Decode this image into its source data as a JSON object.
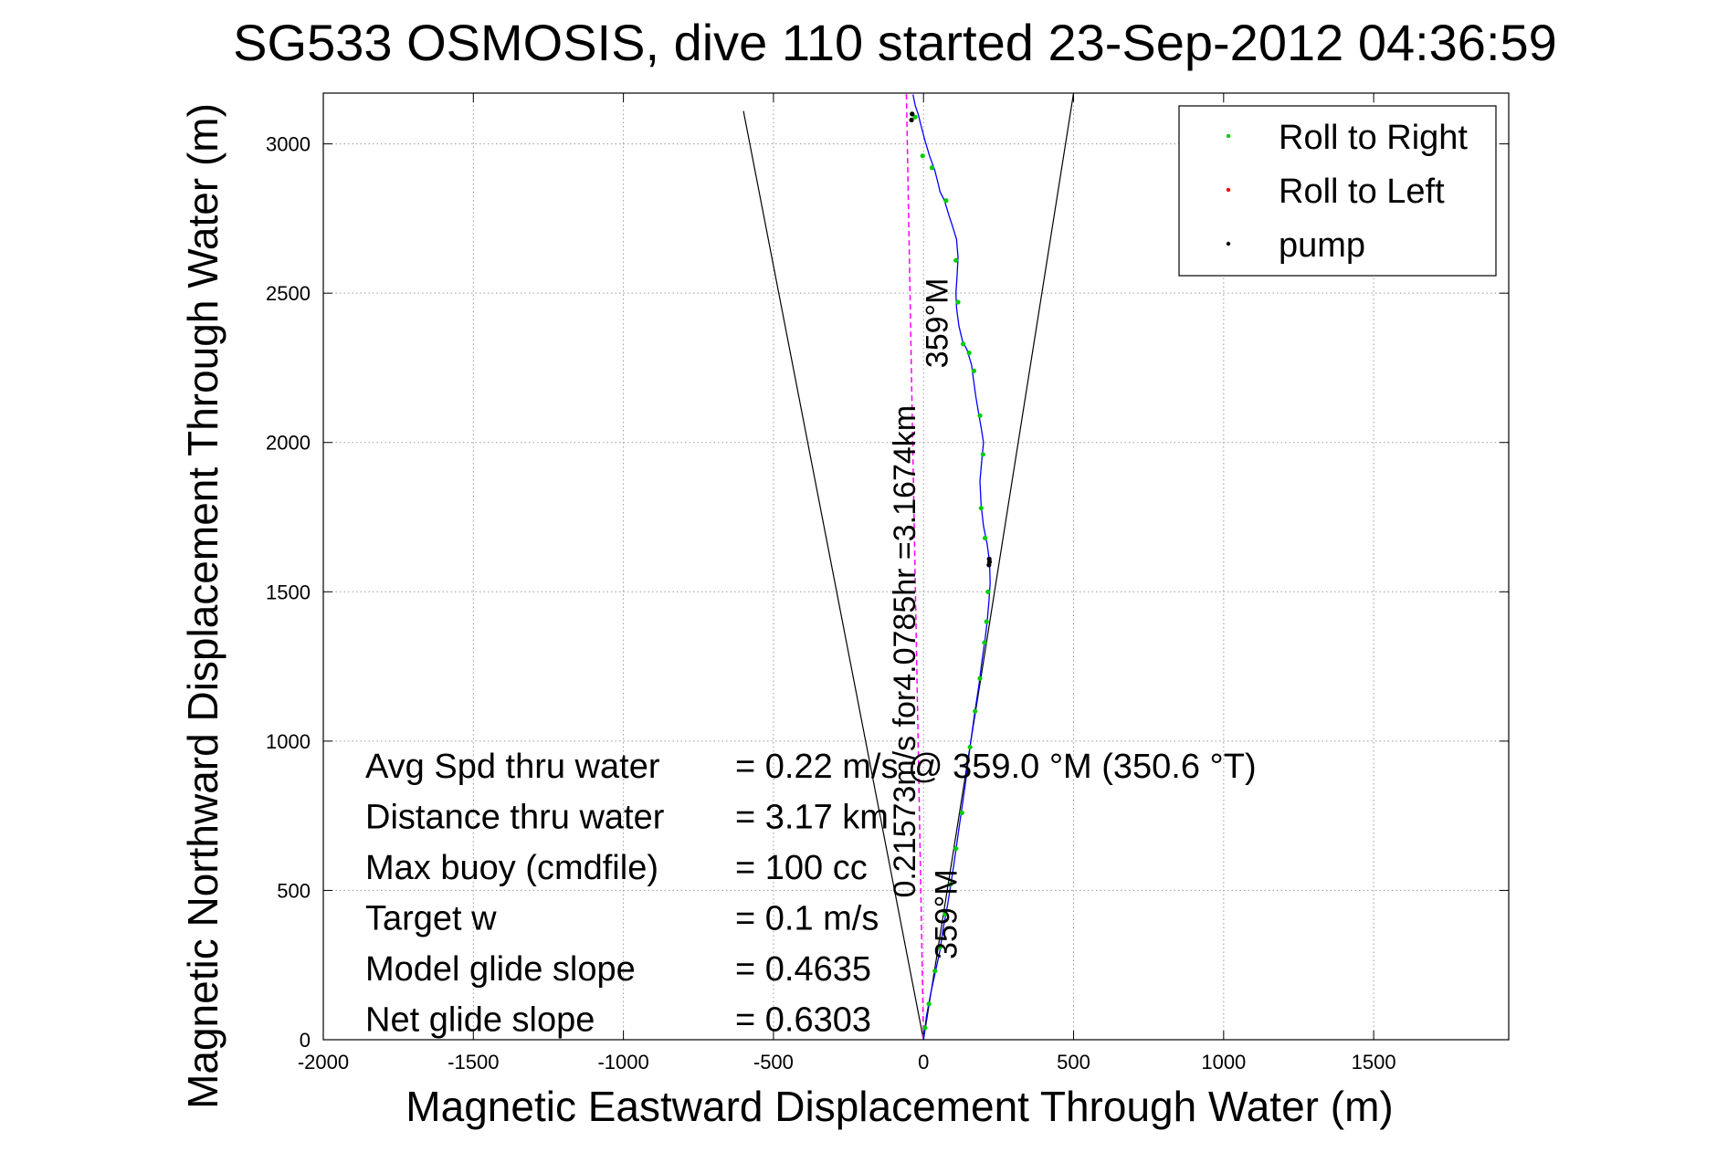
{
  "chart_data": {
    "type": "line",
    "title": "SG533 OSMOSIS, dive 110 started 23-Sep-2012 04:36:59",
    "xlabel": "Magnetic Eastward Displacement Through Water (m)",
    "ylabel": "Magnetic Northward Displacement Through Water (m)",
    "xlim": [
      -2000,
      1950
    ],
    "ylim": [
      0,
      3170
    ],
    "xticks": [
      -2000,
      -1500,
      -1000,
      -500,
      0,
      500,
      1000,
      1500
    ],
    "yticks": [
      0,
      500,
      1000,
      1500,
      2000,
      2500,
      3000
    ],
    "grid": true,
    "legend_position": "top-right",
    "legend": [
      {
        "label": "Roll to Right",
        "color": "#00cc00"
      },
      {
        "label": "Roll to Left",
        "color": "#ff0000"
      },
      {
        "label": "pump",
        "color": "#000000"
      }
    ],
    "track": {
      "name": "track",
      "color": "#0000ff",
      "x": [
        0,
        10,
        25,
        40,
        55,
        65,
        80,
        100,
        120,
        140,
        155,
        170,
        185,
        195,
        205,
        212,
        218,
        222,
        220,
        212,
        200,
        192,
        188,
        195,
        200,
        192,
        185,
        175,
        168,
        160,
        145,
        130,
        118,
        110,
        108,
        112,
        115,
        110,
        98,
        85,
        70,
        55,
        48,
        38,
        20,
        5,
        -8,
        -18,
        -28,
        -35
      ],
      "y": [
        0,
        80,
        160,
        230,
        300,
        370,
        450,
        580,
        720,
        860,
        980,
        1090,
        1190,
        1270,
        1340,
        1400,
        1470,
        1530,
        1600,
        1660,
        1720,
        1790,
        1870,
        1950,
        2000,
        2050,
        2090,
        2150,
        2200,
        2260,
        2310,
        2340,
        2390,
        2450,
        2500,
        2560,
        2620,
        2680,
        2720,
        2760,
        2810,
        2840,
        2870,
        2910,
        2960,
        3010,
        3060,
        3100,
        3130,
        3165
      ]
    },
    "roll_right_points": {
      "x": [
        5,
        18,
        38,
        55,
        72,
        90,
        108,
        128,
        155,
        172,
        188,
        203,
        210,
        215,
        205,
        192,
        198,
        188,
        168,
        152,
        132,
        115,
        108,
        75,
        28,
        -3,
        -28
      ],
      "y": [
        40,
        120,
        230,
        310,
        420,
        520,
        640,
        760,
        980,
        1100,
        1210,
        1330,
        1400,
        1500,
        1680,
        1780,
        1960,
        2090,
        2240,
        2300,
        2330,
        2470,
        2610,
        2810,
        2920,
        2960,
        3090
      ]
    },
    "roll_left_points": {
      "x": [],
      "y": []
    },
    "pump_points": {
      "x": [
        218,
        220,
        219,
        -40,
        -38
      ],
      "y": [
        1590,
        1600,
        1610,
        3080,
        3100
      ]
    },
    "course_line": {
      "color": "#ff00ff",
      "x": [
        0,
        -57
      ],
      "y": [
        0,
        3167
      ]
    },
    "envelope_lines": [
      {
        "x": [
          0,
          -600
        ],
        "y": [
          0,
          3110
        ],
        "color": "#000000"
      },
      {
        "x": [
          0,
          500
        ],
        "y": [
          0,
          3170
        ],
        "color": "#000000"
      }
    ],
    "annotations": [
      {
        "text": "359°M",
        "x": 80,
        "y": 2400,
        "rotation": -90
      },
      {
        "text": "0.21573m/s for4.0785hr =3.1674km",
        "x": -28,
        "y": 1300,
        "rotation": -90
      },
      {
        "text": "359°M",
        "x": 110,
        "y": 420,
        "rotation": -90
      }
    ],
    "stats": [
      {
        "label": "Avg Spd thru water",
        "value": "=  0.22 m/s @  359.0 °M (350.6 °T)"
      },
      {
        "label": "Distance thru water",
        "value": "=  3.17 km"
      },
      {
        "label": "Max buoy (cmdfile)",
        "value": "= 100 cc"
      },
      {
        "label": "Target w",
        "value": "= 0.1 m/s"
      },
      {
        "label": "Model glide slope",
        "value": "= 0.4635"
      },
      {
        "label": "Net glide slope",
        "value": "= 0.6303"
      }
    ]
  }
}
